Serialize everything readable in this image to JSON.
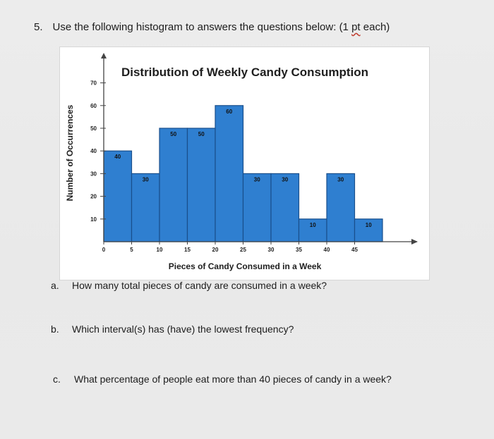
{
  "question": {
    "number": "5.",
    "text": "Use the following histogram to answers the questions below: (1 ",
    "pt": "pt",
    "tail": " each)"
  },
  "chart_data": {
    "type": "bar",
    "title": "Distribution of Weekly Candy Consumption",
    "xlabel": "Pieces of Candy Consumed in a Week",
    "ylabel": "Number of Occurrences",
    "x_ticks": [
      "0",
      "5",
      "10",
      "15",
      "20",
      "25",
      "30",
      "35",
      "40",
      "45"
    ],
    "y_ticks": [
      "10",
      "20",
      "30",
      "40",
      "50",
      "60",
      "70"
    ],
    "values": [
      40,
      30,
      50,
      50,
      60,
      30,
      30,
      10,
      30,
      10
    ],
    "data_labels": [
      "40",
      "30",
      "50",
      "50",
      "60",
      "30",
      "30",
      "10",
      "30",
      "10"
    ],
    "ylim": [
      0,
      70
    ],
    "bar_color": "#2f7fd0",
    "bar_edge": "#1a4f8c",
    "grid": false,
    "legend": "none"
  },
  "subquestions": [
    {
      "letter": "a.",
      "text": "How many total pieces of candy are consumed in a week?"
    },
    {
      "letter": "b.",
      "text": "Which interval(s) has (have) the lowest frequency?"
    },
    {
      "letter": "c.",
      "text": "What percentage of people eat more than 40 pieces of candy in a week?"
    }
  ]
}
